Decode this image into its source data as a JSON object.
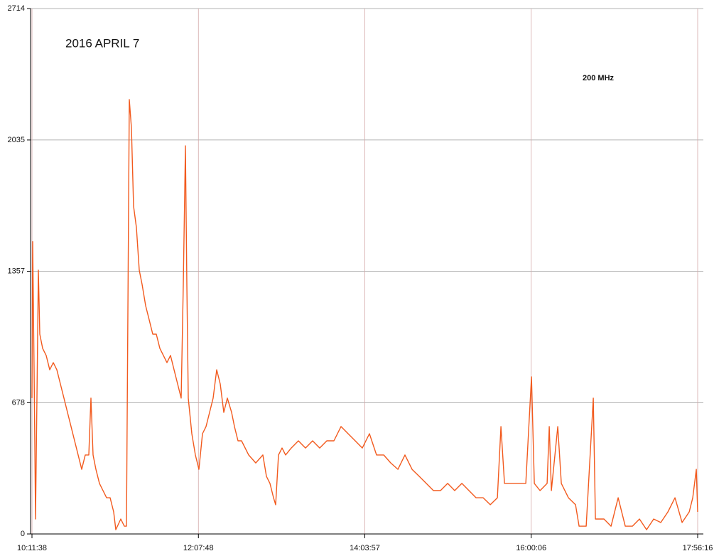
{
  "chart_data": {
    "type": "line",
    "annotations": [
      "2016 APRIL 7",
      "200 MHz"
    ],
    "x": [
      36698,
      36728,
      36787,
      36847,
      36906,
      36966,
      37025,
      37144,
      37293,
      37442,
      37590,
      37739,
      37888,
      38037,
      38186,
      38334,
      38483,
      38632,
      38781,
      38930,
      39078,
      39168,
      39257,
      39376,
      39524,
      39673,
      39822,
      39971,
      40120,
      40209,
      40417,
      40566,
      40655,
      40774,
      40864,
      40953,
      41072,
      41190,
      41310,
      41458,
      41607,
      41756,
      41905,
      42054,
      42202,
      42351,
      42500,
      42649,
      42798,
      42946,
      43036,
      43125,
      43184,
      43244,
      43392,
      43541,
      43690,
      43839,
      43988,
      44136,
      44285,
      44434,
      44583,
      44732,
      44880,
      45059,
      45178,
      45327,
      45476,
      45773,
      46071,
      46368,
      46517,
      46666,
      46815,
      46904,
      47023,
      47172,
      47320,
      47558,
      47856,
      48153,
      48451,
      48748,
      49046,
      49344,
      49641,
      49939,
      50236,
      50534,
      50831,
      51129,
      51427,
      51724,
      52022,
      52319,
      52617,
      52914,
      53212,
      53510,
      53807,
      54105,
      54402,
      54700,
      54998,
      55295,
      55593,
      55890,
      56188,
      56337,
      56486,
      56783,
      57081,
      57378,
      57616,
      57735,
      57974,
      58271,
      58360,
      58450,
      58717,
      58866,
      59164,
      59462,
      59610,
      59908,
      60205,
      60295,
      60652,
      60949,
      61247,
      61544,
      61842,
      62140,
      62437,
      62735,
      63032,
      63330,
      63628,
      63925,
      64223,
      64372,
      64520,
      64576
    ],
    "values": [
      702,
      1510,
      848,
      77,
      702,
      1363,
      1032,
      959,
      922,
      848,
      885,
      848,
      775,
      702,
      628,
      555,
      481,
      408,
      334,
      408,
      408,
      702,
      408,
      334,
      261,
      224,
      187,
      187,
      114,
      22,
      77,
      40,
      40,
      2244,
      2097,
      1693,
      1583,
      1363,
      1289,
      1179,
      1106,
      1032,
      1032,
      959,
      922,
      885,
      922,
      848,
      775,
      702,
      1289,
      2005,
      1289,
      702,
      518,
      408,
      334,
      518,
      555,
      628,
      702,
      848,
      775,
      628,
      702,
      628,
      555,
      481,
      481,
      408,
      367,
      408,
      298,
      261,
      187,
      151,
      408,
      444,
      408,
      444,
      481,
      444,
      481,
      444,
      481,
      481,
      555,
      518,
      481,
      444,
      518,
      408,
      408,
      367,
      334,
      408,
      334,
      298,
      261,
      224,
      224,
      261,
      224,
      261,
      224,
      187,
      187,
      151,
      187,
      555,
      261,
      261,
      261,
      261,
      812,
      261,
      224,
      261,
      555,
      224,
      555,
      261,
      187,
      151,
      40,
      40,
      702,
      77,
      77,
      40,
      187,
      40,
      40,
      77,
      22,
      77,
      59,
      114,
      187,
      59,
      114,
      187,
      334,
      114
    ],
    "color": "#f25a1e",
    "xlim": [
      36698,
      64576
    ],
    "ylim": [
      0,
      2714
    ],
    "xticks": [
      {
        "value": 36698,
        "label": "10:11:38"
      },
      {
        "value": 43668,
        "label": "12:07:48"
      },
      {
        "value": 50637,
        "label": "14:03:57"
      },
      {
        "value": 57606,
        "label": "16:00:06"
      },
      {
        "value": 64576,
        "label": "17:56:16"
      }
    ],
    "yticks": [
      0,
      678,
      1357,
      2035,
      2714
    ],
    "grid": true
  }
}
